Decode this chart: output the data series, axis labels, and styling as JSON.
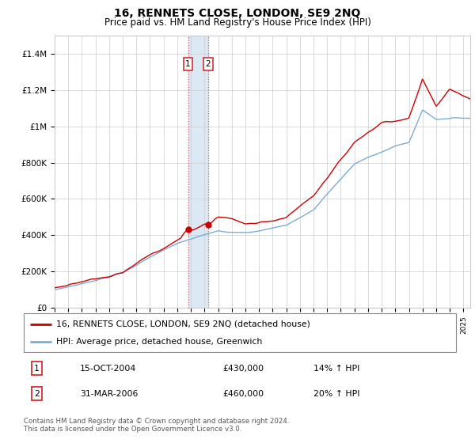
{
  "title": "16, RENNETS CLOSE, LONDON, SE9 2NQ",
  "subtitle": "Price paid vs. HM Land Registry's House Price Index (HPI)",
  "legend_label_red": "16, RENNETS CLOSE, LONDON, SE9 2NQ (detached house)",
  "legend_label_blue": "HPI: Average price, detached house, Greenwich",
  "annotation1_label": "1",
  "annotation1_date": "15-OCT-2004",
  "annotation1_price": "£430,000",
  "annotation1_hpi": "14% ↑ HPI",
  "annotation2_label": "2",
  "annotation2_date": "31-MAR-2006",
  "annotation2_price": "£460,000",
  "annotation2_hpi": "20% ↑ HPI",
  "footer": "Contains HM Land Registry data © Crown copyright and database right 2024.\nThis data is licensed under the Open Government Licence v3.0.",
  "red_color": "#cc0000",
  "blue_color": "#7aadd4",
  "highlight_color": "#dde8f5",
  "grid_color": "#cccccc",
  "annotation_box_color": "#cc3333",
  "ylim": [
    0,
    1500000
  ],
  "yticks": [
    0,
    200000,
    400000,
    600000,
    800000,
    1000000,
    1200000,
    1400000
  ],
  "ytick_labels": [
    "£0",
    "£200K",
    "£400K",
    "£600K",
    "£800K",
    "£1M",
    "£1.2M",
    "£1.4M"
  ],
  "sale1_year": 2004.79,
  "sale1_price": 430000,
  "sale2_year": 2006.25,
  "sale2_price": 460000,
  "xmin": 1995,
  "xmax": 2025.5
}
